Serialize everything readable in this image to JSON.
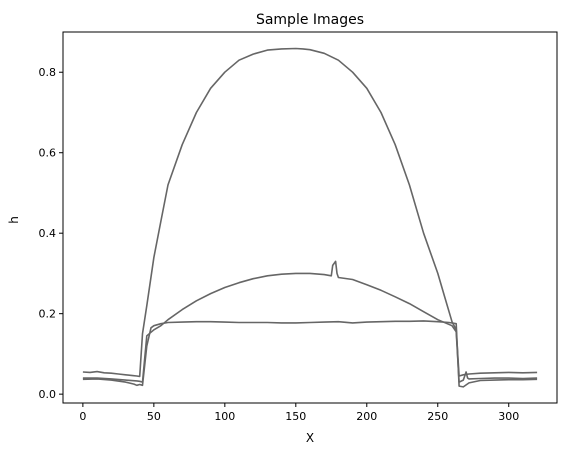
{
  "chart_data": {
    "type": "line",
    "title": "Sample Images",
    "xlabel": "X",
    "ylabel": "h",
    "xlim": [
      -14,
      334
    ],
    "ylim": [
      -0.022,
      0.9
    ],
    "xticks": [
      0,
      50,
      100,
      150,
      200,
      250,
      300
    ],
    "yticks": [
      0.0,
      0.2,
      0.4,
      0.6,
      0.8
    ],
    "grid": false,
    "line_color": "#666666",
    "series": [
      {
        "x": [
          0,
          5,
          10,
          15,
          20,
          25,
          30,
          35,
          38,
          40,
          42,
          45,
          50,
          55,
          60,
          70,
          80,
          90,
          100,
          110,
          120,
          130,
          140,
          150,
          155,
          160,
          170,
          180,
          190,
          200,
          210,
          220,
          230,
          240,
          250,
          255,
          260,
          263,
          265,
          268,
          272,
          280,
          290,
          300,
          310,
          320
        ],
        "y": [
          0.055,
          0.054,
          0.056,
          0.053,
          0.052,
          0.05,
          0.048,
          0.046,
          0.045,
          0.044,
          0.15,
          0.22,
          0.34,
          0.43,
          0.52,
          0.62,
          0.7,
          0.76,
          0.8,
          0.83,
          0.845,
          0.855,
          0.858,
          0.859,
          0.858,
          0.856,
          0.847,
          0.83,
          0.8,
          0.76,
          0.7,
          0.62,
          0.52,
          0.4,
          0.3,
          0.24,
          0.18,
          0.16,
          0.045,
          0.048,
          0.05,
          0.052,
          0.053,
          0.054,
          0.053,
          0.054
        ]
      },
      {
        "x": [
          0,
          10,
          20,
          30,
          38,
          40,
          42,
          45,
          50,
          55,
          60,
          70,
          80,
          90,
          100,
          110,
          120,
          130,
          140,
          150,
          160,
          170,
          175,
          176,
          178,
          179,
          180,
          190,
          200,
          210,
          220,
          230,
          240,
          250,
          260,
          263,
          265,
          268,
          270,
          271,
          272,
          280,
          290,
          300,
          310,
          320
        ],
        "y": [
          0.04,
          0.04,
          0.038,
          0.035,
          0.033,
          0.032,
          0.03,
          0.145,
          0.16,
          0.17,
          0.185,
          0.21,
          0.232,
          0.25,
          0.265,
          0.277,
          0.287,
          0.294,
          0.298,
          0.3,
          0.3,
          0.297,
          0.294,
          0.32,
          0.33,
          0.3,
          0.29,
          0.285,
          0.272,
          0.258,
          0.242,
          0.225,
          0.205,
          0.185,
          0.17,
          0.155,
          0.03,
          0.035,
          0.055,
          0.04,
          0.038,
          0.039,
          0.04,
          0.04,
          0.039,
          0.04
        ]
      },
      {
        "x": [
          0,
          10,
          20,
          30,
          36,
          38,
          40,
          42,
          45,
          48,
          50,
          55,
          60,
          70,
          80,
          90,
          100,
          110,
          120,
          130,
          140,
          150,
          160,
          170,
          180,
          190,
          200,
          210,
          220,
          230,
          240,
          250,
          258,
          263,
          265,
          268,
          272,
          280,
          290,
          300,
          310,
          320
        ],
        "y": [
          0.037,
          0.038,
          0.035,
          0.03,
          0.025,
          0.022,
          0.024,
          0.022,
          0.12,
          0.165,
          0.17,
          0.175,
          0.178,
          0.179,
          0.18,
          0.18,
          0.179,
          0.178,
          0.178,
          0.178,
          0.177,
          0.177,
          0.178,
          0.179,
          0.18,
          0.177,
          0.179,
          0.18,
          0.181,
          0.181,
          0.182,
          0.18,
          0.178,
          0.175,
          0.02,
          0.018,
          0.028,
          0.034,
          0.035,
          0.036,
          0.036,
          0.037
        ]
      }
    ]
  }
}
